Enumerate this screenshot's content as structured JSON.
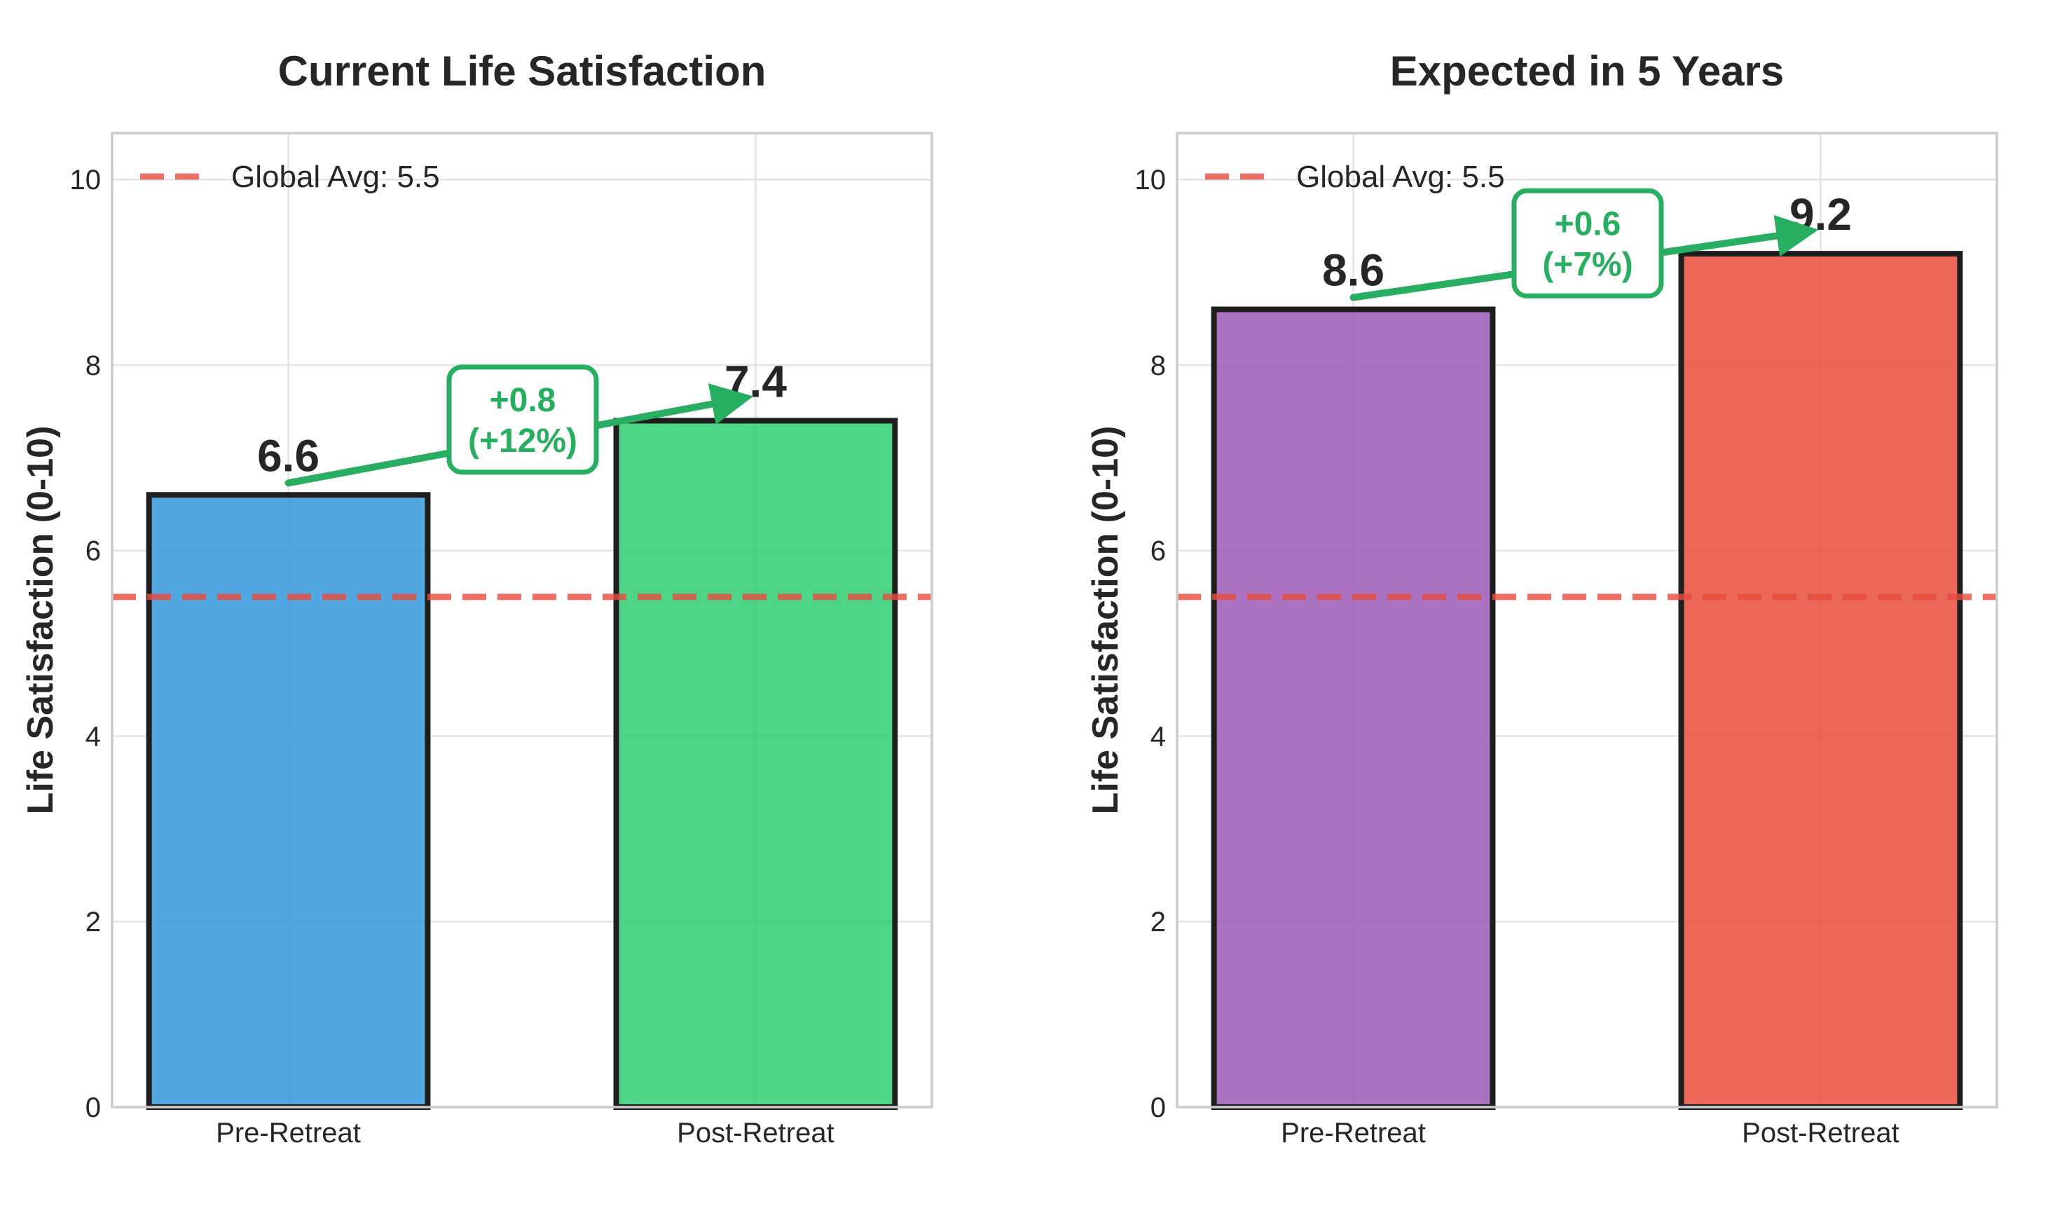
{
  "chart_data": [
    {
      "type": "bar",
      "title": "Current Life Satisfaction",
      "categories": [
        "Pre-Retreat",
        "Post-Retreat"
      ],
      "values": [
        6.6,
        7.4
      ],
      "value_labels": [
        "6.6",
        "7.4"
      ],
      "colors": [
        "#3498db",
        "#2ecc71"
      ],
      "xlabel": "",
      "ylabel": "Life Satisfaction (0-10)",
      "ylim": [
        0,
        10.5
      ],
      "yticks": [
        0,
        2,
        4,
        6,
        8,
        10
      ],
      "grid": true,
      "reference_line": {
        "value": 5.5,
        "label": "Global Avg: 5.5",
        "color": "#e74c3c"
      },
      "legend_position": "upper-left",
      "annotation": {
        "from": 6.6,
        "to": 7.4,
        "line1": "+0.8",
        "line2": "(+12%)",
        "color": "#27ae60"
      }
    },
    {
      "type": "bar",
      "title": "Expected in 5 Years",
      "categories": [
        "Pre-Retreat",
        "Post-Retreat"
      ],
      "values": [
        8.6,
        9.2
      ],
      "value_labels": [
        "8.6",
        "9.2"
      ],
      "colors": [
        "#9b59b6",
        "#e74c3c"
      ],
      "xlabel": "",
      "ylabel": "Life Satisfaction (0-10)",
      "ylim": [
        0,
        10.5
      ],
      "yticks": [
        0,
        2,
        4,
        6,
        8,
        10
      ],
      "grid": true,
      "reference_line": {
        "value": 5.5,
        "label": "Global Avg: 5.5",
        "color": "#e74c3c"
      },
      "legend_position": "upper-left",
      "annotation": {
        "from": 8.6,
        "to": 9.2,
        "line1": "+0.6",
        "line2": "(+7%)",
        "color": "#27ae60"
      }
    }
  ]
}
